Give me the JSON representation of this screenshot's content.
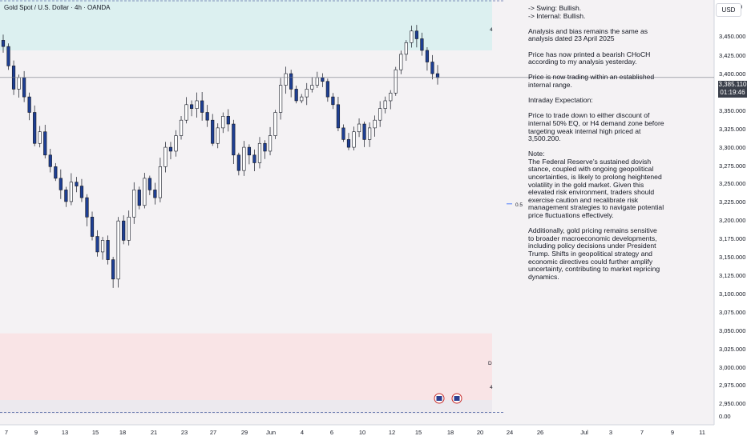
{
  "header": {
    "symbol_title": "Gold Spot / U.S. Dollar · 4h · OANDA"
  },
  "axis": {
    "currency_button": "USD",
    "y_ticks": [
      "3,475.00",
      "3,450.000",
      "3,425.000",
      "3,400.000",
      "3,375.000",
      "3,350.000",
      "3,325.000",
      "3,300.000",
      "3,275.000",
      "3,250.000",
      "3,225.000",
      "3,200.000",
      "3,175.000",
      "3,150.000",
      "3,125.000",
      "3,100.000",
      "3,075.000",
      "3,050.000",
      "3,025.000",
      "3,000.000",
      "2,975.000",
      "2,950.000",
      "0.00"
    ],
    "x_ticks": [
      "7",
      "9",
      "13",
      "15",
      "18",
      "21",
      "23",
      "27",
      "29",
      "Jun",
      "4",
      "6",
      "10",
      "12",
      "15",
      "18",
      "20",
      "24",
      "26",
      "Jul",
      "3",
      "7",
      "9",
      "11"
    ]
  },
  "current_price": {
    "price": "3,385.110",
    "countdown": "01:19:46"
  },
  "zone_labels": {
    "premium": "4",
    "equilibrium": "0.5",
    "discount_demand": "D",
    "discount_low": "4"
  },
  "analysis": {
    "swing": "-> Swing:  Bullish.",
    "internal": "-> Internal:  Bullish.",
    "p1": "Analysis and bias remains the same as analysis dated 23 April 2025",
    "p2": "Price has now printed a bearish CHoCH according to my analysis yesterday.",
    "p3": "Price is now trading within an established internal range.",
    "p4": "Intraday Expectation:",
    "p5": "Price to trade down to either discount of internal 50% EQ, or H4 demand zone before targeting weak internal high priced at 3,500.200.",
    "p6": "Note:\nThe Federal Reserve’s sustained dovish stance, coupled with ongoing geopolitical uncertainties, is likely to prolong heightened volatility in the gold market. Given this elevated risk environment, traders should exercise caution and recalibrate risk management strategies to navigate potential price fluctuations effectively.",
    "p7": "Additionally, gold pricing remains sensitive to broader macroeconomic developments, including policy decisions under President Trump. Shifts in geopolitical strategy and economic directives could further amplify uncertainty, contributing to market repricing dynamics."
  },
  "colors": {
    "up": "#ffffff",
    "down": "#1e3f94",
    "premium_zone": "#dcf0f0",
    "discount_zone": "#f9e4e6",
    "demand_zone": "#ece9ee",
    "badge": "#3a3f4a"
  },
  "chart_data": {
    "type": "candlestick",
    "timeframe": "4h",
    "ylim": [
      2937,
      3485
    ],
    "x_start": "May 6",
    "x_labels": [
      "7",
      "9",
      "13",
      "15",
      "18",
      "21",
      "23",
      "27",
      "29",
      "Jun",
      "4",
      "6",
      "10",
      "12",
      "15",
      "18",
      "20",
      "24",
      "26",
      "Jul",
      "3",
      "7",
      "9",
      "11"
    ],
    "zones": [
      {
        "name": "premium",
        "from": 3420,
        "to": 3485
      },
      {
        "name": "discount",
        "from": 2969,
        "to": 3055
      },
      {
        "name": "demand",
        "from": 2951,
        "to": 2969
      }
    ],
    "equilibrium": 3222,
    "last_price": 3385.11,
    "close_path": [
      3425,
      3400,
      3370,
      3385,
      3360,
      3340,
      3300,
      3315,
      3285,
      3270,
      3255,
      3240,
      3225,
      3250,
      3245,
      3230,
      3205,
      3180,
      3160,
      3175,
      3150,
      3125,
      3200,
      3175,
      3205,
      3240,
      3220,
      3255,
      3240,
      3230,
      3270,
      3295,
      3290,
      3310,
      3330,
      3350,
      3345,
      3355,
      3340,
      3330,
      3300,
      3320,
      3335,
      3325,
      3285,
      3265,
      3295,
      3285,
      3275,
      3300,
      3290,
      3310,
      3340,
      3375,
      3390,
      3370,
      3355,
      3360,
      3370,
      3375,
      3385,
      3380,
      3360,
      3350,
      3320,
      3305,
      3295,
      3315,
      3325,
      3305,
      3320,
      3330,
      3345,
      3355,
      3365,
      3395,
      3415,
      3430,
      3445,
      3435,
      3420,
      3405,
      3390,
      3385
    ]
  }
}
